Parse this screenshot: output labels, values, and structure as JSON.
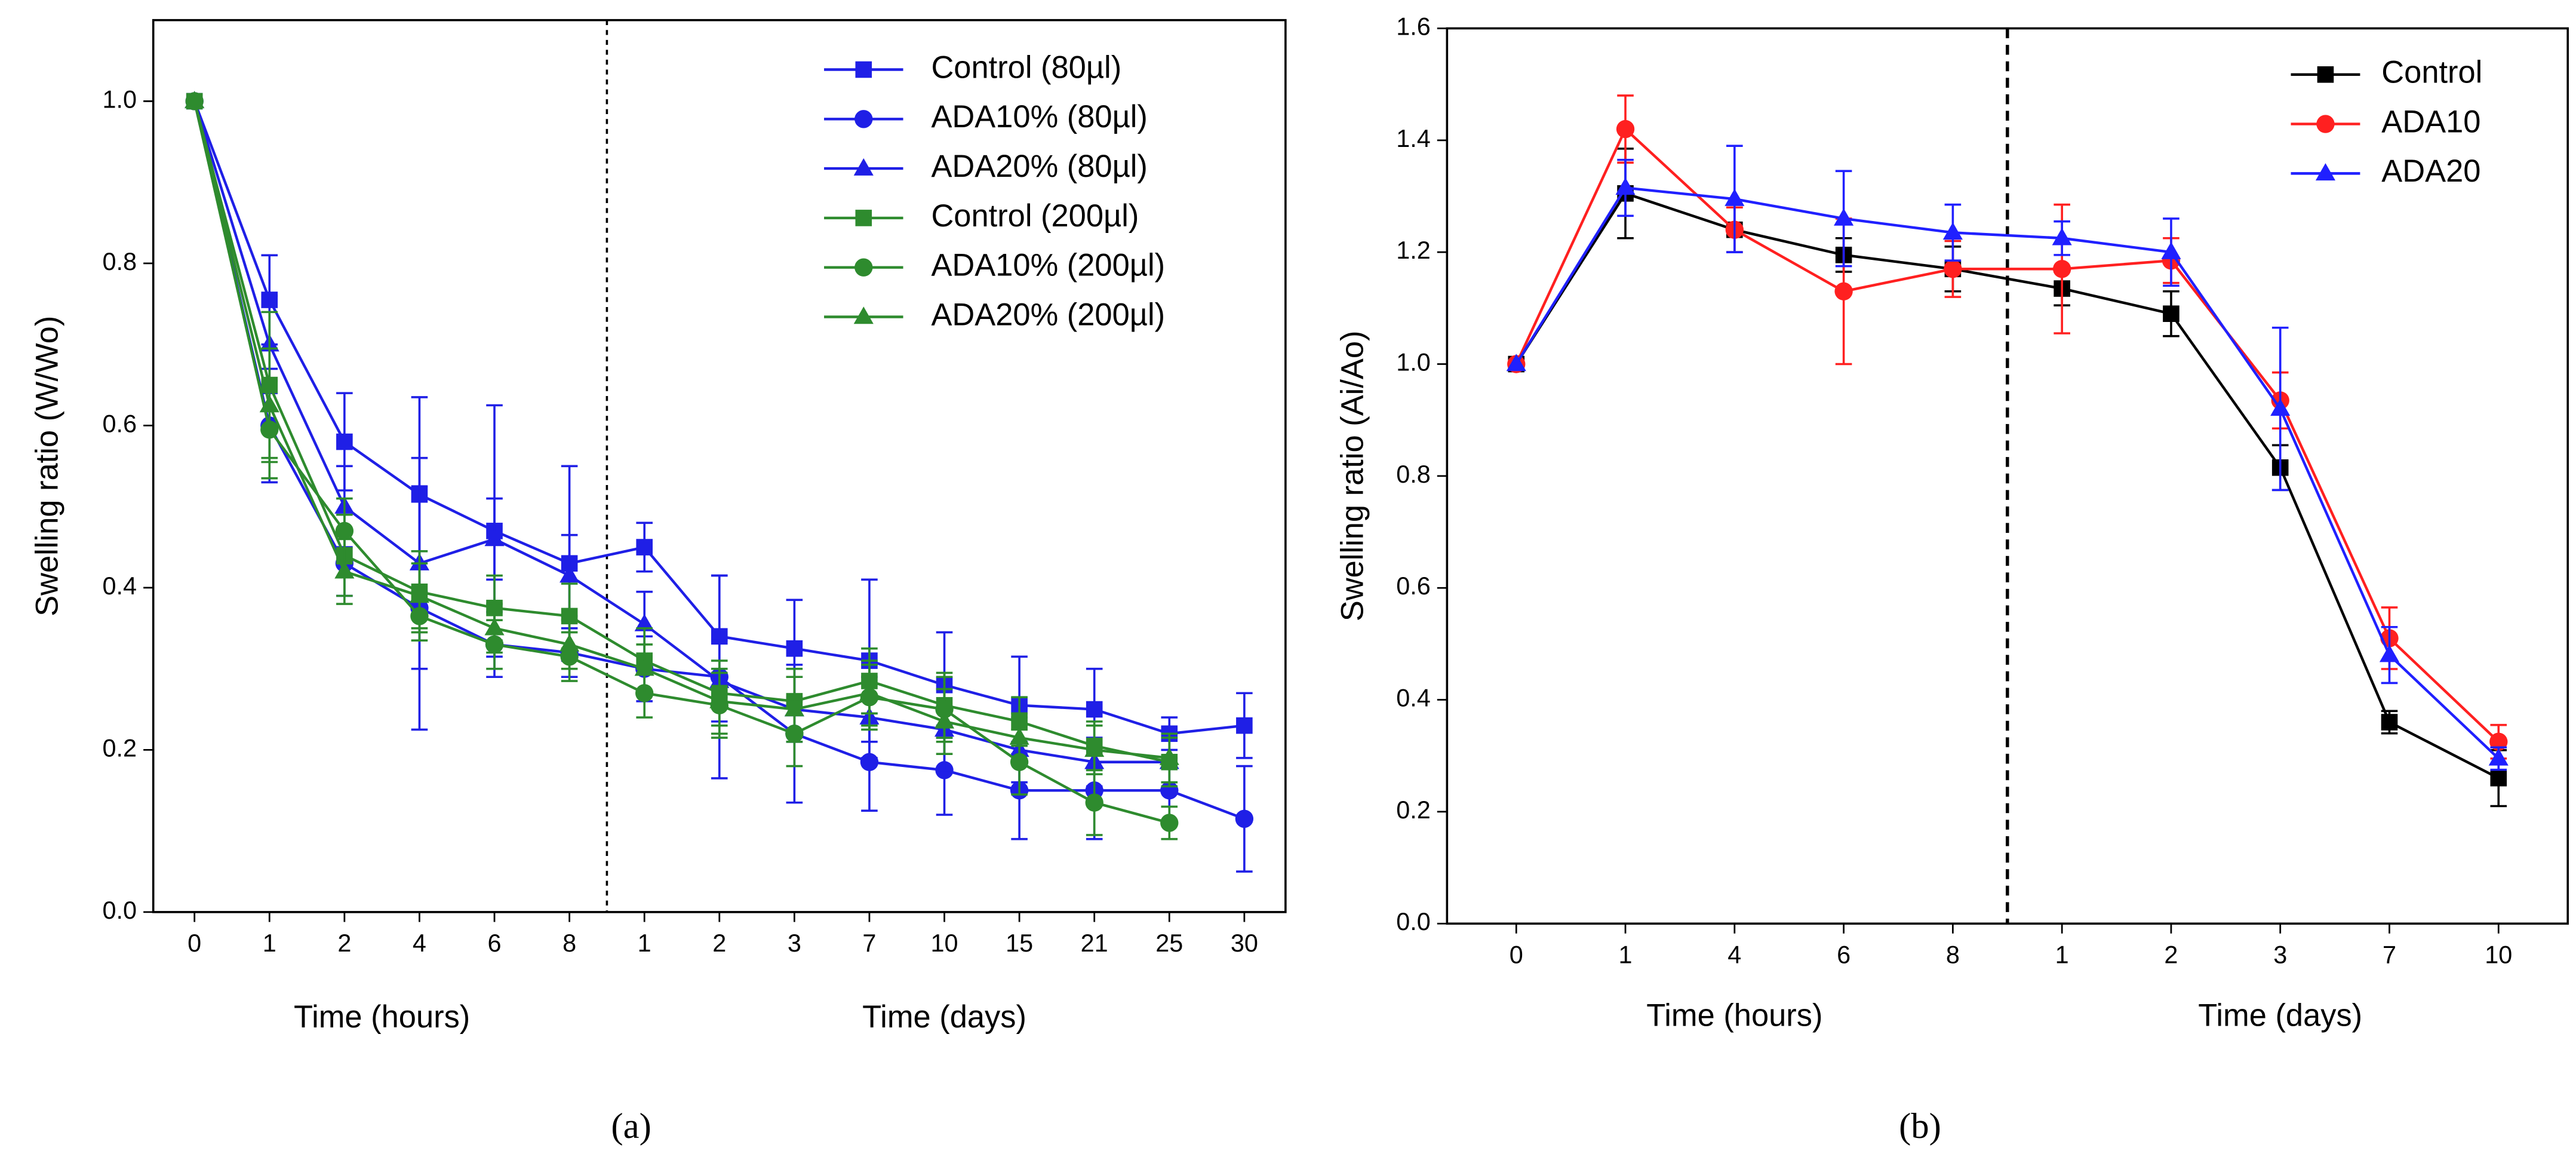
{
  "chart_data": [
    {
      "type": "line",
      "panel_label": "(a)",
      "ylabel": "Swelling ratio (W/Wo)",
      "xlabel": [
        "Time (hours)",
        "Time (days)"
      ],
      "categories": [
        "0",
        "1",
        "2",
        "4",
        "6",
        "8",
        "1",
        "2",
        "3",
        "7",
        "10",
        "15",
        "21",
        "25",
        "30"
      ],
      "ylim": [
        0,
        1.1
      ],
      "yticks": [
        {
          "value": 0,
          "label": "0.0"
        },
        0.2,
        0.4,
        0.6,
        0.8,
        {
          "value": 1,
          "label": "1.0"
        }
      ],
      "legend": "upper right",
      "series": [
        {
          "name": "Control (80µl)",
          "color": "#1f1fe6",
          "marker": "square",
          "values": [
            1.0,
            0.755,
            0.58,
            0.515,
            0.47,
            0.43,
            0.45,
            0.34,
            0.325,
            0.31,
            0.28,
            0.255,
            0.25,
            0.22,
            0.23
          ],
          "errors": [
            0,
            0.055,
            0.06,
            0.12,
            0.155,
            0.12,
            0.03,
            0.075,
            0.06,
            0.1,
            0.065,
            0.06,
            0.05,
            0.02,
            0.04
          ]
        },
        {
          "name": "ADA10% (80µl)",
          "color": "#1f1fe6",
          "marker": "circle",
          "values": [
            1.0,
            0.6,
            0.43,
            0.375,
            0.33,
            0.32,
            0.3,
            0.29,
            0.22,
            0.185,
            0.175,
            0.15,
            0.15,
            0.15,
            0.115
          ],
          "errors": [
            0,
            0.07,
            0.04,
            0.15,
            0.04,
            0.03,
            0.04,
            0.125,
            0.085,
            0.06,
            0.055,
            0.06,
            0.06,
            0.04,
            0.065
          ]
        },
        {
          "name": "ADA20% (80µl)",
          "color": "#1f1fe6",
          "marker": "triangle",
          "values": [
            1.0,
            0.7,
            0.5,
            0.43,
            0.46,
            0.415,
            0.355,
            0.285,
            0.25,
            0.24,
            0.225,
            0.2,
            0.185,
            0.185,
            null
          ],
          "errors": [
            0,
            0.06,
            0.05,
            0.13,
            0.05,
            0.05,
            0.04,
            0.05,
            0.04,
            0.05,
            0.05,
            0.04,
            0.03,
            0.03,
            null
          ]
        },
        {
          "name": "Control (200µl)",
          "color": "#2e8b2e",
          "marker": "square",
          "values": [
            1.0,
            0.65,
            0.44,
            0.395,
            0.375,
            0.365,
            0.31,
            0.27,
            0.26,
            0.285,
            0.255,
            0.235,
            0.205,
            0.185,
            null
          ],
          "errors": [
            0,
            0.09,
            0.05,
            0.05,
            0.04,
            0.04,
            0.04,
            0.04,
            0.04,
            0.04,
            0.04,
            0.03,
            0.03,
            0.03,
            null
          ]
        },
        {
          "name": "ADA10% (200µl)",
          "color": "#2e8b2e",
          "marker": "circle",
          "values": [
            1.0,
            0.595,
            0.47,
            0.365,
            0.33,
            0.315,
            0.27,
            0.255,
            0.22,
            0.265,
            0.25,
            0.185,
            0.135,
            0.11,
            null
          ],
          "errors": [
            0,
            0.06,
            0.04,
            0.03,
            0.03,
            0.03,
            0.03,
            0.04,
            0.04,
            0.04,
            0.04,
            0.04,
            0.04,
            0.02,
            null
          ]
        },
        {
          "name": "ADA20% (200µl)",
          "color": "#2e8b2e",
          "marker": "triangle",
          "values": [
            1.0,
            0.625,
            0.42,
            0.39,
            0.35,
            0.33,
            0.3,
            0.26,
            0.25,
            0.27,
            0.235,
            0.215,
            0.2,
            0.19,
            null
          ],
          "errors": [
            0,
            0.07,
            0.04,
            0.04,
            0.03,
            0.03,
            0.03,
            0.04,
            0.04,
            0.04,
            0.04,
            0.03,
            0.03,
            0.03,
            null
          ]
        }
      ]
    },
    {
      "type": "line",
      "panel_label": "(b)",
      "ylabel": "Swelling ratio (Ai/Ao)",
      "xlabel": [
        "Time (hours)",
        "Time (days)"
      ],
      "categories": [
        "0",
        "1",
        "4",
        "6",
        "8",
        "1",
        "2",
        "3",
        "7",
        "10"
      ],
      "ylim": [
        0,
        1.6
      ],
      "yticks": [
        {
          "value": 0,
          "label": "0.0"
        },
        0.2,
        0.4,
        0.6,
        0.8,
        {
          "value": 1,
          "label": "1.0"
        },
        1.2,
        1.4,
        1.6
      ],
      "legend": "upper right",
      "series": [
        {
          "name": "Control",
          "color": "#000000",
          "marker": "square",
          "values": [
            1.0,
            1.305,
            1.24,
            1.195,
            1.17,
            1.135,
            1.09,
            0.815,
            0.36,
            0.26
          ],
          "errors": [
            0,
            0.08,
            0.04,
            0.03,
            0.04,
            0.03,
            0.04,
            0.04,
            0.02,
            0.05
          ]
        },
        {
          "name": "ADA10",
          "color": "#ff2020",
          "marker": "circle",
          "values": [
            1.0,
            1.42,
            1.24,
            1.13,
            1.17,
            1.17,
            1.185,
            0.935,
            0.51,
            0.325
          ],
          "errors": [
            0,
            0.06,
            0.04,
            0.13,
            0.05,
            0.115,
            0.04,
            0.05,
            0.055,
            0.03
          ]
        },
        {
          "name": "ADA20",
          "color": "#2020ff",
          "marker": "triangle",
          "values": [
            1.0,
            1.315,
            1.295,
            1.26,
            1.235,
            1.225,
            1.2,
            0.92,
            0.48,
            0.295
          ],
          "errors": [
            0,
            0.05,
            0.095,
            0.085,
            0.05,
            0.03,
            0.06,
            0.145,
            0.05,
            0.02
          ]
        }
      ]
    }
  ]
}
